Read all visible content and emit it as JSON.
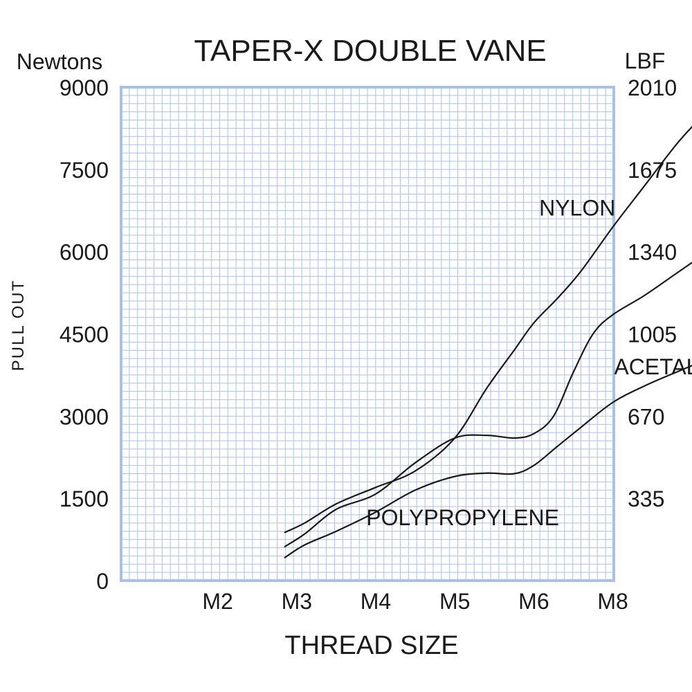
{
  "chart_data": {
    "type": "line",
    "title": "TAPER-X DOUBLE VANE",
    "xlabel": "THREAD SIZE",
    "ylabel": "PULL OUT",
    "y_left_unit": "Newtons",
    "y_right_unit": "LBF",
    "categories": [
      "M2",
      "M3",
      "M4",
      "M5",
      "M6",
      "M8"
    ],
    "ylim": [
      0,
      9000
    ],
    "y_left_ticks": [
      "0",
      "1500",
      "3000",
      "4500",
      "6000",
      "7500",
      "9000"
    ],
    "y_right_ticks": [
      "335",
      "670",
      "1005",
      "1340",
      "1675",
      "2010"
    ],
    "grid": true,
    "grid_color": "#a9c1e6",
    "line_color": "#1a1a1a",
    "series": [
      {
        "name": "NYLON",
        "x": [
          1.85,
          2.1,
          2.5,
          3.0,
          3.5,
          4.0,
          4.4,
          4.75,
          5.0,
          5.3,
          5.6,
          6.0,
          6.4,
          6.8,
          7.05
        ],
        "values": [
          880,
          1050,
          1400,
          1700,
          2000,
          2600,
          3500,
          4200,
          4700,
          5150,
          5650,
          6450,
          7200,
          7950,
          8350
        ]
      },
      {
        "name": "ACETAL",
        "x": [
          1.85,
          2.1,
          2.5,
          3.0,
          3.5,
          4.0,
          4.4,
          4.75,
          5.0,
          5.25,
          5.5,
          5.75,
          6.0,
          6.4,
          6.8,
          7.05
        ],
        "values": [
          620,
          850,
          1300,
          1580,
          2150,
          2600,
          2650,
          2600,
          2680,
          3000,
          3800,
          4500,
          4850,
          5200,
          5600,
          5850
        ]
      },
      {
        "name": "POLYPROPYLENE",
        "x": [
          1.85,
          2.1,
          2.5,
          3.0,
          3.5,
          4.0,
          4.4,
          4.75,
          5.0,
          5.3,
          5.6,
          6.0,
          6.4,
          6.8,
          7.05
        ],
        "values": [
          420,
          650,
          900,
          1250,
          1650,
          1900,
          1960,
          1950,
          2100,
          2450,
          2800,
          3250,
          3550,
          3800,
          3950
        ]
      }
    ],
    "annotations": [
      {
        "series": "NYLON",
        "text": "NYLON",
        "x": 5.55,
        "y": 6800
      },
      {
        "series": "ACETAL",
        "text": "ACETAL",
        "x": 6.55,
        "y": 3900
      },
      {
        "series": "POLYPROPYLENE",
        "text": "POLYPROPYLENE",
        "x": 4.1,
        "y": 1150
      }
    ]
  }
}
